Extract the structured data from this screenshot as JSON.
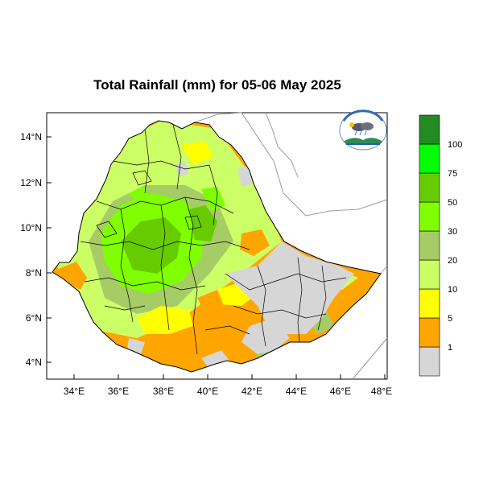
{
  "title": "Total Rainfall (mm) for 05-06 May 2025",
  "map": {
    "lat_ticks": [
      "14°N",
      "12°N",
      "10°N",
      "8°N",
      "6°N",
      "4°N"
    ],
    "lon_ticks": [
      "34°E",
      "36°E",
      "38°E",
      "40°E",
      "42°E",
      "44°E",
      "46°E",
      "48°E"
    ],
    "logo_caption": "Ethiopian Meteorology Institute"
  },
  "legend": {
    "unit": "mm",
    "levels": [
      {
        "label": "1",
        "color": "#d6d6d6"
      },
      {
        "label": "5",
        "color": "#ffa500"
      },
      {
        "label": "10",
        "color": "#ffff00"
      },
      {
        "label": "20",
        "color": "#ccff66"
      },
      {
        "label": "30",
        "color": "#a6cc66"
      },
      {
        "label": "50",
        "color": "#7fff00"
      },
      {
        "label": "75",
        "color": "#66cc00"
      },
      {
        "label": "100",
        "color": "#00ff00"
      },
      {
        "label": "",
        "color": "#228b22"
      }
    ]
  }
}
